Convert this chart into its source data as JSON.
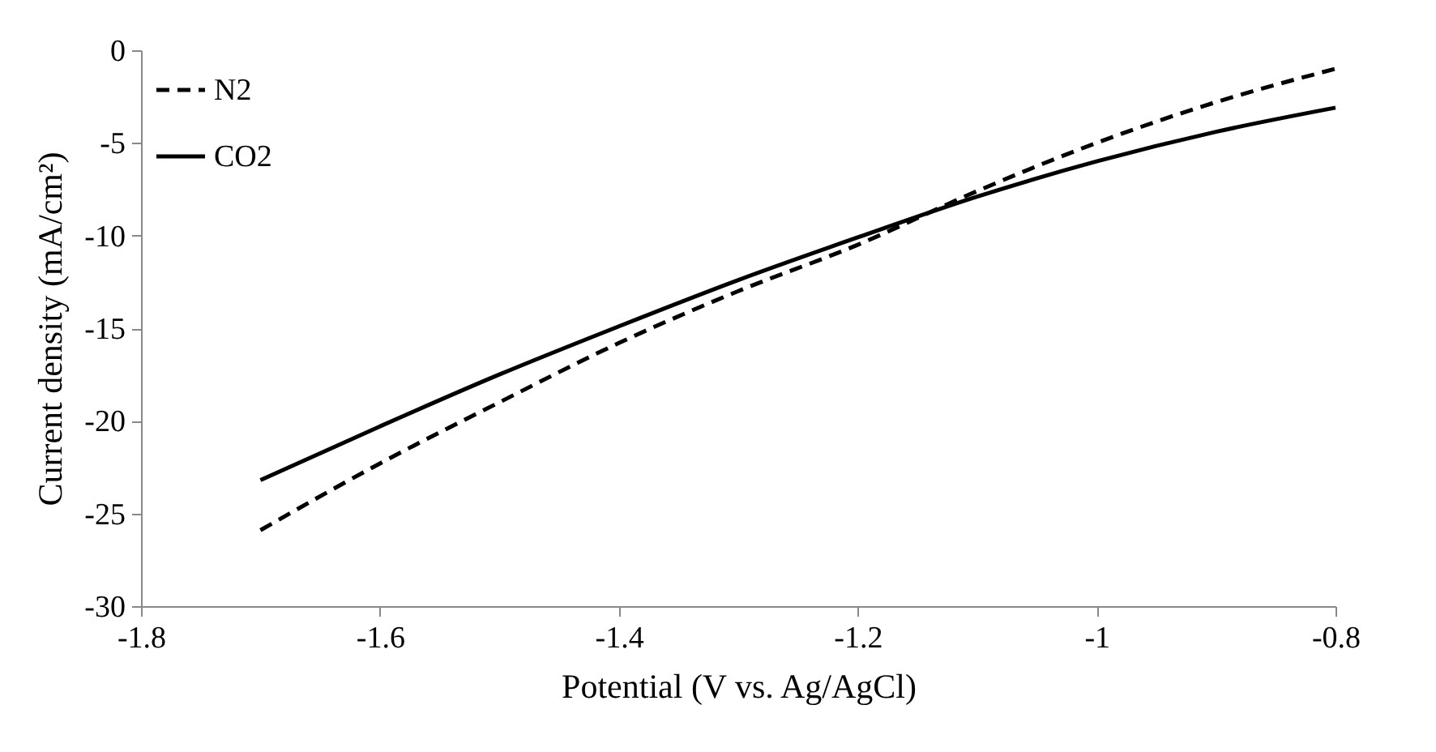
{
  "chart_data": {
    "type": "line",
    "xlabel": "Potential (V vs. Ag/AgCl)",
    "ylabel": "Current density (mA/cm²)",
    "x": [
      -1.7,
      -1.6,
      -1.5,
      -1.4,
      -1.3,
      -1.2,
      -1.1,
      -1.0,
      -0.9,
      -0.8
    ],
    "series": [
      {
        "name": "N2",
        "color": "#000000",
        "line_style": "dashed",
        "values": [
          -25.9,
          -22.3,
          -19.0,
          -15.8,
          -13.0,
          -10.5,
          -7.6,
          -5.0,
          -2.8,
          -1.0
        ]
      },
      {
        "name": "CO2",
        "color": "#000000",
        "line_style": "solid",
        "values": [
          -23.2,
          -20.3,
          -17.5,
          -14.9,
          -12.4,
          -10.1,
          -7.9,
          -6.0,
          -4.4,
          -3.1
        ]
      }
    ],
    "xlim": [
      -1.8,
      -0.8
    ],
    "xticks": [
      -1.8,
      -1.6,
      -1.4,
      -1.2,
      -1,
      -0.8
    ],
    "ylim": [
      -30,
      0
    ],
    "yticks": [
      -30,
      -25,
      -20,
      -15,
      -10,
      -5,
      0
    ],
    "grid": false,
    "legend": "top left",
    "marker": "none"
  }
}
